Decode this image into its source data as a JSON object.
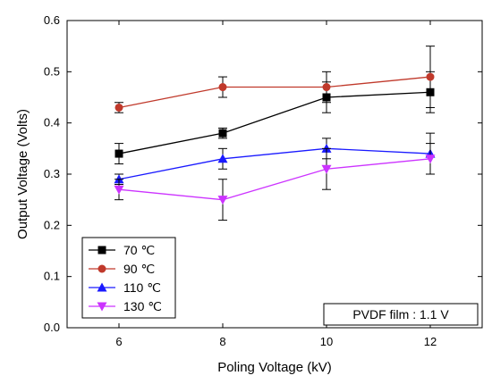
{
  "chart_data": {
    "type": "line",
    "xlabel": "Poling Voltage (kV)",
    "ylabel": "Output Voltage (Volts)",
    "x": [
      6,
      8,
      10,
      12
    ],
    "xlim": [
      5,
      13
    ],
    "ylim": [
      0.0,
      0.6
    ],
    "x_ticks": [
      "6",
      "8",
      "10",
      "12"
    ],
    "y_ticks": [
      "0.0",
      "0.1",
      "0.2",
      "0.3",
      "0.4",
      "0.5",
      "0.6"
    ],
    "grid": false,
    "legend_position": "bottom-left",
    "annotation": "PVDF film : 1.1 V",
    "series": [
      {
        "name": "70 ℃",
        "color": "#000000",
        "marker": "square",
        "values": [
          0.34,
          0.38,
          0.45,
          0.46
        ],
        "errors": [
          0.02,
          0.01,
          0.03,
          0.04
        ]
      },
      {
        "name": "90 ℃",
        "color": "#c0392b",
        "marker": "circle",
        "values": [
          0.43,
          0.47,
          0.47,
          0.49
        ],
        "errors": [
          0.01,
          0.02,
          0.03,
          0.06
        ]
      },
      {
        "name": "110 ℃",
        "color": "#1a1aff",
        "marker": "triangle-up",
        "values": [
          0.29,
          0.33,
          0.35,
          0.34
        ],
        "errors": [
          0.01,
          0.02,
          0.02,
          0.04
        ]
      },
      {
        "name": "130 ℃",
        "color": "#cc33ff",
        "marker": "triangle-down",
        "values": [
          0.27,
          0.25,
          0.31,
          0.33
        ],
        "errors": [
          0.02,
          0.04,
          0.04,
          0.03
        ]
      }
    ]
  }
}
